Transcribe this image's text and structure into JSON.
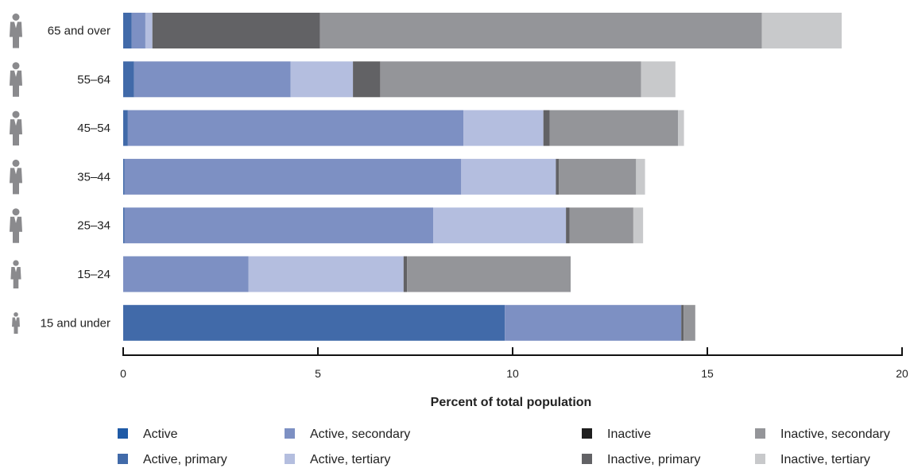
{
  "chart_data": {
    "type": "bar",
    "orientation": "horizontal",
    "stacked": true,
    "title": "",
    "xlabel": "Percent of total population",
    "ylabel": "",
    "xlim": [
      0,
      20
    ],
    "xticks": [
      0,
      5,
      10,
      15,
      20
    ],
    "grid": false,
    "legend_position": "bottom",
    "categories": [
      "65 and over",
      "55–64",
      "45–54",
      "35–44",
      "25–34",
      "15–24",
      "15 and under"
    ],
    "category_icon": "person-icon",
    "series": [
      {
        "name": "Active",
        "color": "#1f5aa6",
        "values": [
          0,
          0,
          0,
          0,
          0,
          0,
          0
        ]
      },
      {
        "name": "Active, primary",
        "color": "#416aa9",
        "values": [
          0.22,
          0.28,
          0.12,
          0.03,
          0.03,
          0,
          9.8
        ]
      },
      {
        "name": "Active, secondary",
        "color": "#7d90c3",
        "values": [
          0.35,
          4.02,
          8.62,
          8.65,
          7.93,
          3.22,
          4.53
        ]
      },
      {
        "name": "Active, tertiary",
        "color": "#b4bedf",
        "values": [
          0.18,
          1.6,
          2.05,
          2.43,
          3.41,
          3.98,
          0
        ]
      },
      {
        "name": "Inactive",
        "color": "#1e1e1e",
        "values": [
          0,
          0,
          0,
          0,
          0,
          0,
          0
        ]
      },
      {
        "name": "Inactive, primary",
        "color": "#626265",
        "values": [
          4.3,
          0.7,
          0.16,
          0.08,
          0.09,
          0.09,
          0.06
        ]
      },
      {
        "name": "Inactive, secondary",
        "color": "#949599",
        "values": [
          11.35,
          6.7,
          3.3,
          1.98,
          1.64,
          4.2,
          0.3
        ]
      },
      {
        "name": "Inactive, tertiary",
        "color": "#c8c9cb",
        "values": [
          2.05,
          0.88,
          0.15,
          0.23,
          0.25,
          0,
          0
        ]
      }
    ]
  }
}
